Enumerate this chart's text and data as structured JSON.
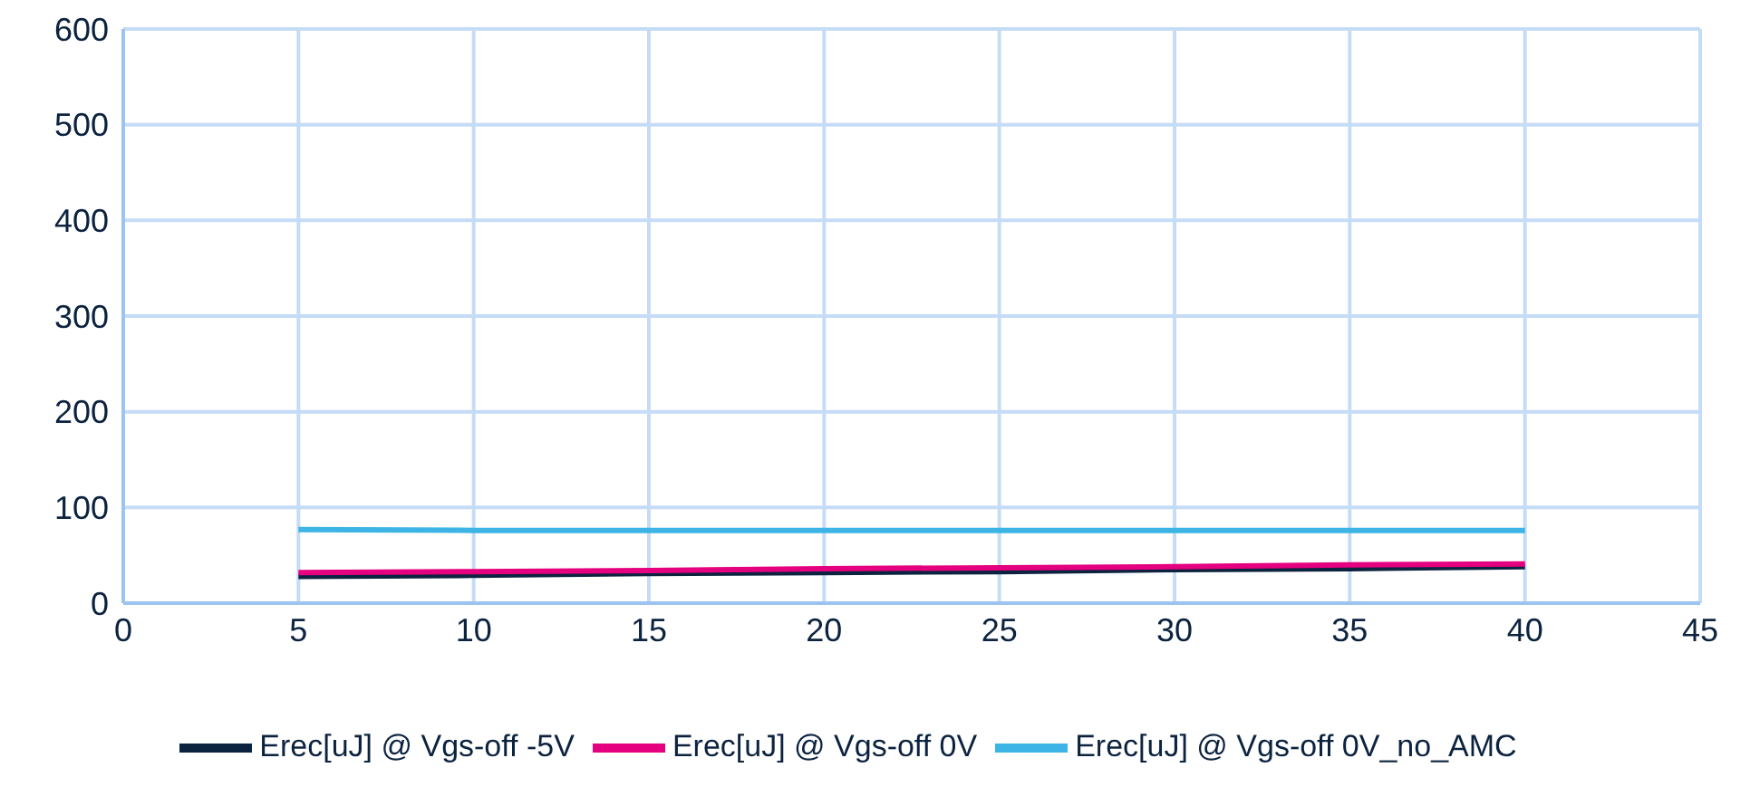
{
  "chart_data": {
    "type": "line",
    "x": [
      5,
      10,
      15,
      20,
      25,
      30,
      35,
      40
    ],
    "xlim": [
      0,
      45
    ],
    "xticks": [
      0,
      5,
      10,
      15,
      20,
      25,
      30,
      35,
      40,
      45
    ],
    "ylim": [
      0,
      600
    ],
    "yticks": [
      0,
      100,
      200,
      300,
      400,
      500,
      600
    ],
    "grid": true,
    "legend": "bottom",
    "marker": "none",
    "line_style": "solid",
    "series": [
      {
        "name": "Erec[uJ] @ Vgs-off -5V",
        "color": "#0c2340",
        "values": [
          28,
          29,
          31,
          32,
          33,
          35,
          36,
          38
        ]
      },
      {
        "name": "Erec[uJ] @ Vgs-off 0V",
        "color": "#e4007f",
        "values": [
          32,
          33,
          34,
          36,
          37,
          38,
          40,
          41
        ]
      },
      {
        "name": "Erec[uJ] @ Vgs-off 0V_no_AMC",
        "color": "#3cb4e5",
        "values": [
          77,
          76,
          76,
          76,
          76,
          76,
          76,
          76
        ]
      }
    ]
  }
}
